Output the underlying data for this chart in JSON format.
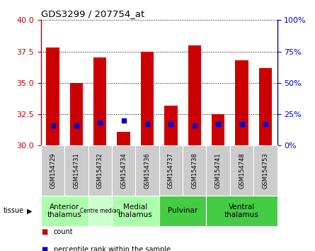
{
  "title": "GDS3299 / 207754_at",
  "samples": [
    "GSM154729",
    "GSM154731",
    "GSM154732",
    "GSM154734",
    "GSM154736",
    "GSM154737",
    "GSM154738",
    "GSM154741",
    "GSM154748",
    "GSM154753"
  ],
  "count_values": [
    37.8,
    35.0,
    37.0,
    31.1,
    37.5,
    33.2,
    38.0,
    32.5,
    36.8,
    36.2
  ],
  "percentile_values": [
    16,
    16,
    18,
    20,
    17,
    17,
    16,
    17,
    17,
    17
  ],
  "y_min": 30,
  "y_max": 40,
  "y_ticks": [
    30,
    32.5,
    35,
    37.5,
    40
  ],
  "right_y_ticks": [
    0,
    25,
    50,
    75,
    100
  ],
  "right_y_labels": [
    "0%",
    "25%",
    "50%",
    "75%",
    "100%"
  ],
  "bar_color": "#cc0000",
  "percentile_color": "#0000cc",
  "bar_bottom": 30,
  "groups": [
    {
      "label": "Anterior\nthalamus",
      "start": 0,
      "end": 1,
      "color": "#aaffaa",
      "fontsize": 7.5
    },
    {
      "label": "Centre median",
      "start": 2,
      "end": 2,
      "color": "#ccffcc",
      "fontsize": 5.5
    },
    {
      "label": "Medial\nthalamus",
      "start": 3,
      "end": 4,
      "color": "#aaffaa",
      "fontsize": 7.5
    },
    {
      "label": "Pulvinar",
      "start": 5,
      "end": 6,
      "color": "#44cc44",
      "fontsize": 7.5
    },
    {
      "label": "Ventral\nthalamus",
      "start": 7,
      "end": 9,
      "color": "#44cc44",
      "fontsize": 7.5
    }
  ],
  "ylabel_left_color": "#cc0000",
  "ylabel_right_color": "#0000cc",
  "xticklabel_bg": "#cccccc",
  "legend_count_label": "count",
  "legend_percentile_label": "percentile rank within the sample"
}
